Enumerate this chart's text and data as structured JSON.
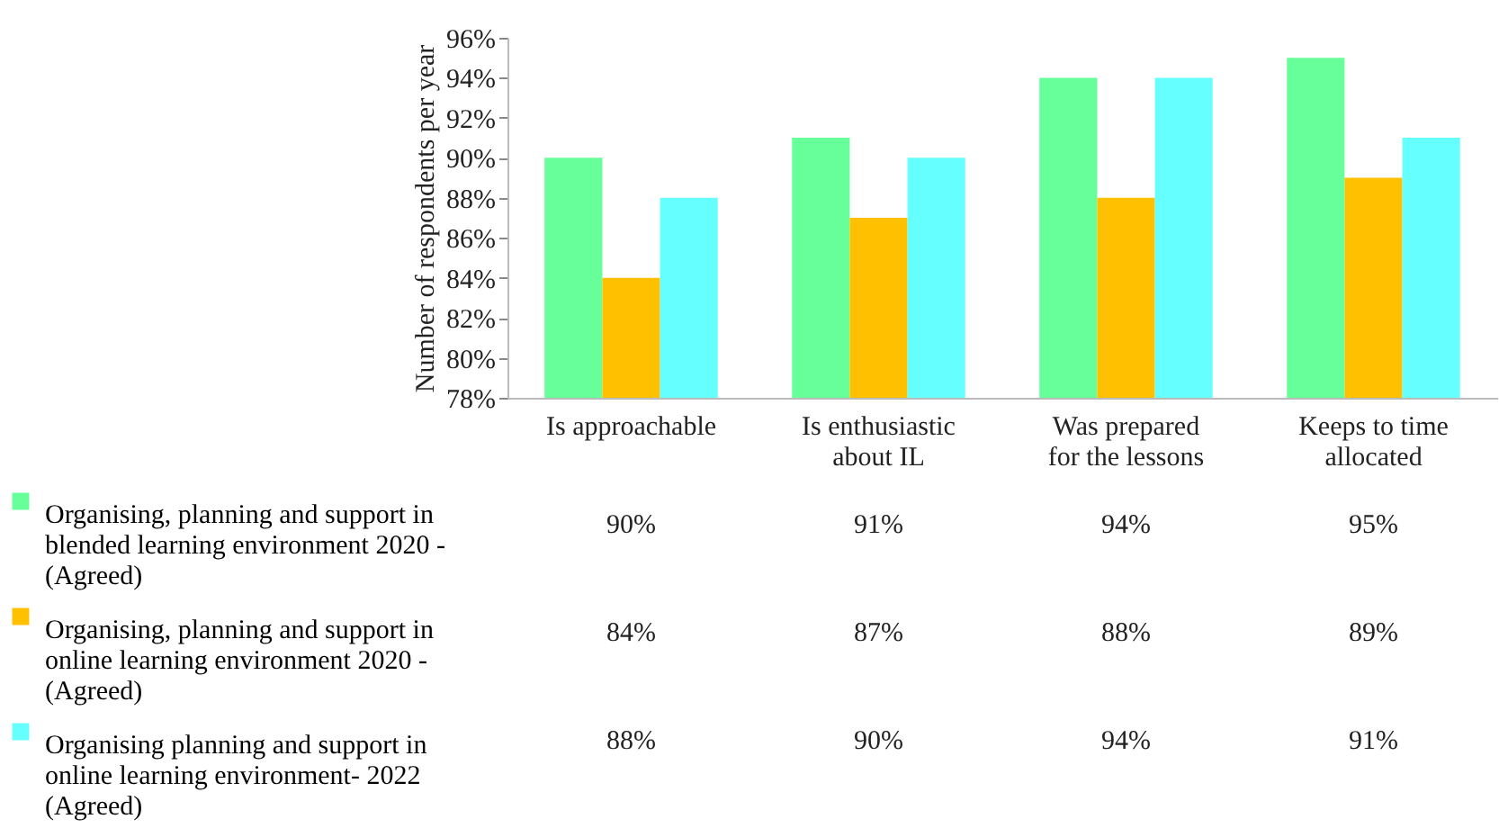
{
  "chart_data": {
    "type": "bar",
    "ylabel": "Number of respondents per year",
    "categories": [
      "Is approachable",
      "Is enthusiastic about IL",
      "Was prepared for the lessons",
      "Keeps to time allocated"
    ],
    "series": [
      {
        "name": "Organising, planning and support in blended learning environment 2020 - (Agreed)",
        "color": "#66ff99",
        "values": [
          90,
          91,
          94,
          95
        ],
        "value_labels": [
          "90%",
          "91%",
          "94%",
          "95%"
        ]
      },
      {
        "name": "Organising, planning and support in online learning environment 2020 - (Agreed)",
        "color": "#ffc000",
        "values": [
          84,
          87,
          88,
          89
        ],
        "value_labels": [
          "84%",
          "87%",
          "88%",
          "89%"
        ]
      },
      {
        "name": "Organising planning and support in online learning environment- 2022 (Agreed)",
        "color": "#66ffff",
        "values": [
          88,
          90,
          94,
          91
        ],
        "value_labels": [
          "88%",
          "90%",
          "94%",
          "91%"
        ]
      }
    ],
    "ylim": [
      78,
      96
    ],
    "yticks": [
      {
        "value": 78,
        "label": "78%"
      },
      {
        "value": 80,
        "label": "80%"
      },
      {
        "value": 82,
        "label": "82%"
      },
      {
        "value": 84,
        "label": "84%"
      },
      {
        "value": 86,
        "label": "86%"
      },
      {
        "value": 88,
        "label": "88%"
      },
      {
        "value": 90,
        "label": "90%"
      },
      {
        "value": 92,
        "label": "92%"
      },
      {
        "value": 94,
        "label": "94%"
      },
      {
        "value": 96,
        "label": "96%"
      }
    ],
    "grid": false,
    "legend": "bottom"
  }
}
